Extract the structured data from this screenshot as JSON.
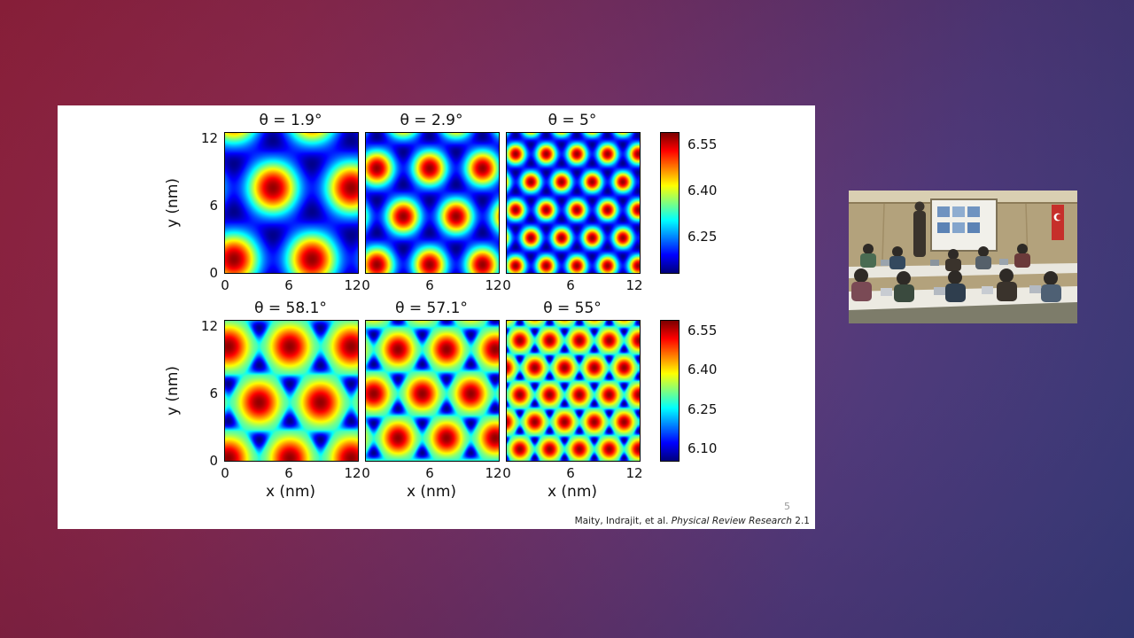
{
  "page": {
    "background_gradient_left": "#a02342",
    "background_gradient_right": "#3d4189"
  },
  "slide": {
    "page_number": "5",
    "citation": {
      "authors": "Maity, Indrajit, et al. ",
      "journal": "Physical Review Research",
      "issue": " 2.1"
    }
  },
  "chart_data": {
    "type": "heatmap",
    "description": "Grid of six jet-colormap heatmaps of interlayer distance versus position for twisted bilayers at six twist angles; bright spots form a hexagonal moire lattice whose period shrinks as the twist angle moves away from 0/60 degrees",
    "colormap": "jet",
    "xlabel": "x (nm)",
    "ylabel": "y (nm)",
    "x_range": [
      0,
      12.5
    ],
    "y_range": [
      0,
      12.5
    ],
    "x_ticks": [
      0,
      6,
      12
    ],
    "y_ticks": [
      12,
      6,
      0
    ],
    "rows": [
      {
        "show_xlabel": false,
        "colorbar": {
          "min": 6.13,
          "max": 6.59,
          "ticks": [
            6.55,
            6.4,
            6.25
          ]
        },
        "transfer": {
          "knot_t": 0.12,
          "knot_v": 0.16
        },
        "panels": [
          {
            "title": "θ = 1.9°",
            "twist_deg": 1.9,
            "moire_period_nm": 7.4,
            "origin": [
              4.5,
              7.6
            ]
          },
          {
            "title": "θ = 2.9°",
            "twist_deg": 2.9,
            "moire_period_nm": 5.0,
            "origin": [
              1.0,
              0.7
            ]
          },
          {
            "title": "θ = 5°",
            "twist_deg": 5.0,
            "moire_period_nm": 2.9,
            "origin": [
              0.8,
              0.6
            ]
          }
        ]
      },
      {
        "show_xlabel": true,
        "colorbar": {
          "min": 6.05,
          "max": 6.59,
          "ticks": [
            6.55,
            6.4,
            6.25,
            6.1
          ]
        },
        "transfer": {
          "knot_t": 0.12,
          "knot_v": 0.45
        },
        "panels": [
          {
            "title": "θ = 58.1°",
            "twist_deg": 58.1,
            "moire_period_nm": 5.8,
            "origin": [
              3.2,
              5.2
            ]
          },
          {
            "title": "θ = 57.1°",
            "twist_deg": 57.1,
            "moire_period_nm": 4.6,
            "origin": [
              3.0,
              2.0
            ]
          },
          {
            "title": "θ = 55°",
            "twist_deg": 55.0,
            "moire_period_nm": 2.82,
            "origin": [
              1.2,
              1.0
            ]
          }
        ]
      }
    ]
  },
  "video": {
    "flag_color": "#c62f2a",
    "wall_color": "#b3a27c",
    "screen_color": "#f1f0ea"
  }
}
